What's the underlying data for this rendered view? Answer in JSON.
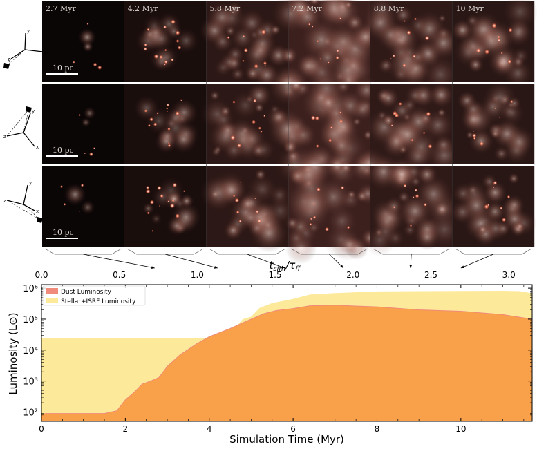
{
  "panels": {
    "times": [
      "2.7 Myr",
      "4.2 Myr",
      "5.8 Myr",
      "7.2 Myr",
      "8.8 Myr",
      "10 Myr"
    ],
    "scale_label": "10 pc",
    "axis_labels": {
      "x": "x",
      "y": "y",
      "z": "z"
    },
    "rows": 3,
    "brightness": [
      0.05,
      0.3,
      0.6,
      0.85,
      0.65,
      0.55
    ]
  },
  "top_axis": {
    "label": "t_sim/τ_ff",
    "ticks": [
      "0.0",
      "0.5",
      "1.0",
      "1.5",
      "2.0",
      "2.5",
      "3.0"
    ],
    "tick_values": [
      0.0,
      0.5,
      1.0,
      1.5,
      2.0,
      2.5,
      3.0
    ],
    "range": [
      0,
      3.15
    ]
  },
  "chart_data": {
    "type": "area",
    "xlabel": "Simulation Time (Myr)",
    "ylabel": "Luminosity (L⊙)",
    "xlim": [
      0,
      11.7
    ],
    "ylim": [
      50,
      1300000
    ],
    "yscale": "log",
    "x_ticks": [
      0,
      2,
      4,
      6,
      8,
      10
    ],
    "y_ticks": [
      "10²",
      "10³",
      "10⁴",
      "10⁵",
      "10⁶"
    ],
    "y_tick_values": [
      100,
      1000,
      10000,
      100000,
      1000000
    ],
    "legend_position": "top-left",
    "series": [
      {
        "name": "Stellar+ISRF Luminosity",
        "color": "#fde99a",
        "x": [
          0,
          1.0,
          2.0,
          3.0,
          3.5,
          4.0,
          4.3,
          4.6,
          4.7,
          4.8,
          5.0,
          5.2,
          5.5,
          6.0,
          6.4,
          7.0,
          8.0,
          9.0,
          10.0,
          11.0,
          11.4,
          11.7
        ],
        "values": [
          25000,
          25000,
          25000,
          25000,
          25000,
          25000,
          30000,
          50000,
          70000,
          100000,
          120000,
          230000,
          330000,
          450000,
          620000,
          690000,
          780000,
          800000,
          810000,
          820000,
          800000,
          680000
        ]
      },
      {
        "name": "Dust Luminosity",
        "color": "#f9a14a",
        "x": [
          0,
          0.1,
          0.6,
          1.0,
          1.5,
          1.8,
          2.0,
          2.2,
          2.4,
          2.6,
          2.8,
          3.0,
          3.3,
          3.7,
          4.0,
          4.5,
          5.0,
          5.3,
          5.6,
          6.0,
          6.4,
          7.0,
          8.0,
          9.0,
          10.0,
          11.0,
          11.7
        ],
        "values": [
          85,
          90,
          90,
          90,
          90,
          110,
          250,
          420,
          800,
          1000,
          1300,
          3000,
          7000,
          16000,
          27000,
          50000,
          100000,
          150000,
          190000,
          220000,
          270000,
          280000,
          250000,
          200000,
          180000,
          140000,
          100000
        ]
      }
    ]
  }
}
